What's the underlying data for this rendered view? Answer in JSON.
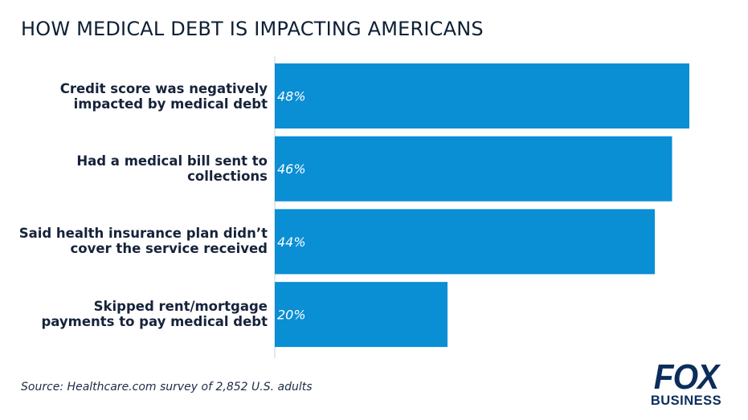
{
  "chart_data": {
    "type": "bar",
    "orientation": "horizontal",
    "title": "HOW MEDICAL DEBT IS IMPACTING AMERICANS",
    "categories": [
      "Credit score was negatively impacted by medical debt",
      "Had a medical bill sent to collections",
      "Said health insurance plan didn’t cover the service received",
      "Skipped rent/mortgage payments to pay medical debt"
    ],
    "values": [
      48,
      46,
      44,
      20
    ],
    "data_labels": [
      "48%",
      "46%",
      "44%",
      "20%"
    ],
    "xlim": [
      0,
      48
    ],
    "grid": false,
    "legend": "none",
    "bar_color": "#0a8ed4",
    "label_color": "#ffffff"
  },
  "labels": {
    "cat0": [
      "Credit score was negatively",
      "impacted by medical debt"
    ],
    "cat1": [
      "Had a medical bill sent to",
      "collections"
    ],
    "cat2": [
      "Said health insurance plan didn’t",
      "cover the service received"
    ],
    "cat3": [
      "Skipped rent/mortgage",
      "payments to pay medical debt"
    ]
  },
  "footer": {
    "source": "Source: Healthcare.com survey of 2,852 U.S. adults"
  },
  "logo": {
    "line1": "FOX",
    "line2": "BUSINESS",
    "color": "#0b2d5c"
  }
}
